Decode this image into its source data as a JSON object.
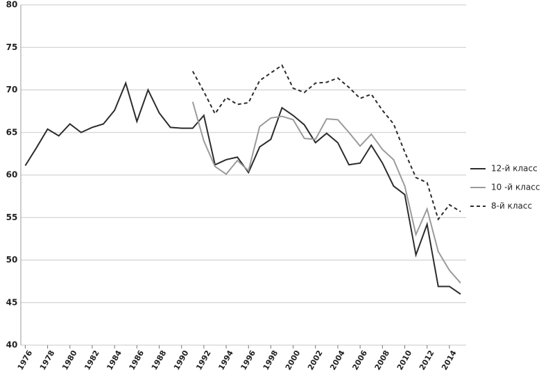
{
  "chart_data": {
    "type": "line",
    "x": [
      1976,
      1977,
      1978,
      1979,
      1980,
      1981,
      1982,
      1983,
      1984,
      1985,
      1986,
      1987,
      1988,
      1989,
      1990,
      1991,
      1992,
      1993,
      1994,
      1995,
      1996,
      1997,
      1998,
      1999,
      2000,
      2001,
      2002,
      2003,
      2004,
      2005,
      2006,
      2007,
      2008,
      2009,
      2010,
      2011,
      2012,
      2013,
      2014,
      2015
    ],
    "series": [
      {
        "name": "12-й класс",
        "color": "#2b2b2b",
        "linestyle": "solid",
        "values": [
          61.1,
          63.2,
          65.4,
          64.6,
          66.0,
          65.0,
          65.6,
          66.0,
          67.6,
          70.8,
          66.3,
          70.0,
          67.3,
          65.6,
          65.5,
          65.5,
          67.0,
          61.2,
          61.8,
          62.1,
          60.3,
          63.3,
          64.2,
          67.9,
          67.0,
          65.9,
          63.8,
          64.9,
          63.8,
          61.2,
          61.4,
          63.5,
          61.4,
          58.7,
          57.7,
          50.6,
          54.2,
          46.9,
          46.9,
          46.0
        ]
      },
      {
        "name": "10 -й класс",
        "color": "#9a9a9a",
        "linestyle": "solid",
        "values": [
          null,
          null,
          null,
          null,
          null,
          null,
          null,
          null,
          null,
          null,
          null,
          null,
          null,
          null,
          null,
          68.6,
          64.0,
          61.0,
          60.1,
          61.7,
          60.5,
          65.7,
          66.7,
          66.9,
          66.5,
          64.3,
          64.2,
          66.6,
          66.5,
          65.0,
          63.4,
          64.8,
          63.0,
          61.8,
          58.7,
          53.0,
          56.0,
          51.0,
          48.8,
          47.3
        ]
      },
      {
        "name": "8-й класс",
        "color": "#2b2b2b",
        "linestyle": "dashed",
        "values": [
          null,
          null,
          null,
          null,
          null,
          null,
          null,
          null,
          null,
          null,
          null,
          null,
          null,
          null,
          null,
          72.2,
          69.8,
          67.2,
          69.1,
          68.3,
          68.5,
          71.1,
          72.0,
          72.9,
          70.2,
          69.7,
          70.8,
          70.9,
          71.4,
          70.3,
          69.0,
          69.5,
          67.6,
          66.0,
          62.7,
          59.7,
          59.1,
          54.8,
          56.5,
          55.7
        ]
      }
    ],
    "xlim": [
      1975.6,
      2015.5
    ],
    "xticks": [
      1976,
      1978,
      1980,
      1982,
      1984,
      1986,
      1988,
      1990,
      1992,
      1994,
      1996,
      1998,
      2000,
      2002,
      2004,
      2006,
      2008,
      2010,
      2012,
      2014
    ],
    "ylim": [
      40,
      80
    ],
    "yticks": [
      40,
      45,
      50,
      55,
      60,
      65,
      70,
      75,
      80
    ],
    "grid": true,
    "legend": "right"
  }
}
